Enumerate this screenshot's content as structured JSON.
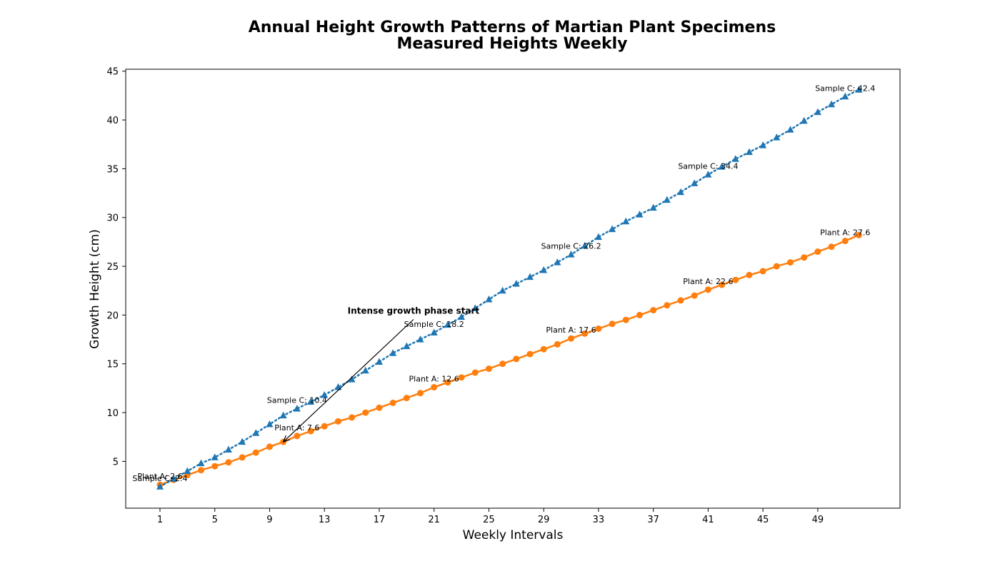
{
  "chart_data": {
    "type": "line",
    "title": "Annual Height Growth Patterns of Martian Plant Specimens",
    "subtitle": "Measured Heights Weekly",
    "xlabel": "Weekly Intervals",
    "ylabel": "Growth Height (cm)",
    "xlim": [
      -1.5,
      55
    ],
    "ylim": [
      0.2,
      45.2
    ],
    "x_ticks": [
      1,
      5,
      9,
      13,
      17,
      21,
      25,
      29,
      33,
      37,
      41,
      45,
      49
    ],
    "y_ticks": [
      5,
      10,
      15,
      20,
      25,
      30,
      35,
      40,
      45
    ],
    "grid": false,
    "legend": "none",
    "x": [
      1,
      2,
      3,
      4,
      5,
      6,
      7,
      8,
      9,
      10,
      11,
      12,
      13,
      14,
      15,
      16,
      17,
      18,
      19,
      20,
      21,
      22,
      23,
      24,
      25,
      26,
      27,
      28,
      29,
      30,
      31,
      32,
      33,
      34,
      35,
      36,
      37,
      38,
      39,
      40,
      41,
      42,
      43,
      44,
      45,
      46,
      47,
      48,
      49,
      50,
      51,
      52
    ],
    "series": [
      {
        "key": "plant_a",
        "color": "#ff7f0e",
        "marker": "circle",
        "line_style": "solid",
        "values": [
          2.6,
          3.1,
          3.6,
          4.1,
          4.5,
          4.9,
          5.4,
          5.9,
          6.5,
          7.0,
          7.6,
          8.1,
          8.6,
          9.1,
          9.5,
          10.0,
          10.5,
          11.0,
          11.5,
          12.0,
          12.6,
          13.1,
          13.6,
          14.1,
          14.5,
          15.0,
          15.5,
          16.0,
          16.5,
          17.0,
          17.6,
          18.1,
          18.6,
          19.1,
          19.5,
          20.0,
          20.5,
          21.0,
          21.5,
          22.0,
          22.6,
          23.1,
          23.6,
          24.1,
          24.5,
          25.0,
          25.4,
          25.9,
          26.5,
          27.0,
          27.6,
          28.2
        ]
      },
      {
        "key": "sample_c",
        "color": "#1f77b4",
        "marker": "triangle",
        "line_style": "dotted",
        "values": [
          2.4,
          3.2,
          4.0,
          4.8,
          5.4,
          6.2,
          7.0,
          7.9,
          8.8,
          9.7,
          10.4,
          11.1,
          11.8,
          12.6,
          13.4,
          14.3,
          15.2,
          16.1,
          16.8,
          17.5,
          18.2,
          19.0,
          19.8,
          20.7,
          21.6,
          22.5,
          23.2,
          23.9,
          24.6,
          25.4,
          26.2,
          27.1,
          28.0,
          28.8,
          29.6,
          30.3,
          31.0,
          31.8,
          32.6,
          33.5,
          34.4,
          35.2,
          36.0,
          36.7,
          37.4,
          38.2,
          39.0,
          39.9,
          40.8,
          41.6,
          42.4,
          43.1
        ]
      }
    ],
    "data_labels": [
      {
        "text": "Plant A: 2.6",
        "x": 1,
        "series": "plant_a"
      },
      {
        "text": "Plant A: 7.6",
        "x": 11,
        "series": "plant_a"
      },
      {
        "text": "Plant A: 12.6",
        "x": 21,
        "series": "plant_a"
      },
      {
        "text": "Plant A: 17.6",
        "x": 31,
        "series": "plant_a"
      },
      {
        "text": "Plant A: 22.6",
        "x": 41,
        "series": "plant_a"
      },
      {
        "text": "Plant A: 27.6",
        "x": 51,
        "series": "plant_a"
      },
      {
        "text": "Sample C: 2.4",
        "x": 1,
        "series": "sample_c"
      },
      {
        "text": "Sample C: 10.4",
        "x": 11,
        "series": "sample_c"
      },
      {
        "text": "Sample C: 18.2",
        "x": 21,
        "series": "sample_c"
      },
      {
        "text": "Sample C: 26.2",
        "x": 31,
        "series": "sample_c"
      },
      {
        "text": "Sample C: 34.4",
        "x": 41,
        "series": "sample_c"
      },
      {
        "text": "Sample C: 42.4",
        "x": 51,
        "series": "sample_c"
      }
    ],
    "annotation": {
      "text": "Intense growth phase start",
      "text_at": [
        19.5,
        19.7
      ],
      "arrow_to": [
        10,
        7.0
      ]
    }
  }
}
